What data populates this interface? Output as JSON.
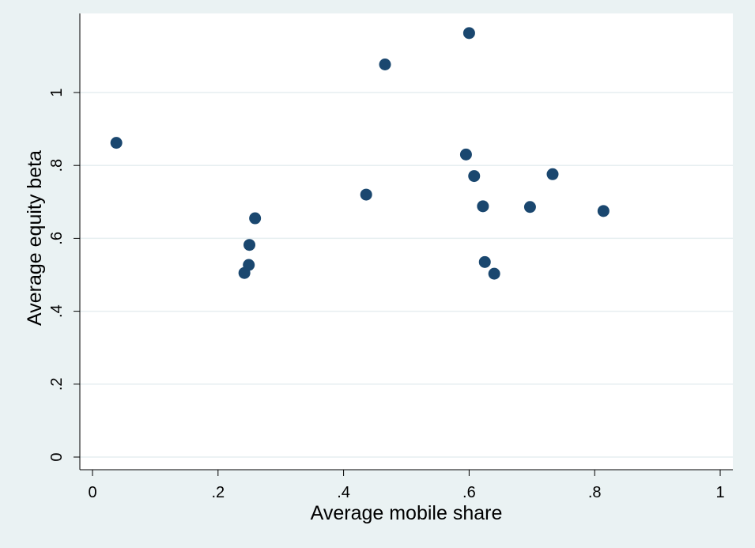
{
  "chart_data": {
    "type": "scatter",
    "title": "",
    "xlabel": "Average mobile share",
    "ylabel": "Average equity beta",
    "xlim": [
      0,
      1
    ],
    "ylim": [
      0,
      1.15
    ],
    "x_ticks": [
      0,
      0.2,
      0.4,
      0.6,
      0.8,
      1
    ],
    "x_tick_labels": [
      "0",
      ".2",
      ".4",
      ".6",
      ".8",
      "1"
    ],
    "y_ticks": [
      0,
      0.2,
      0.4,
      0.6,
      0.8,
      1
    ],
    "y_tick_labels": [
      "0",
      ".2",
      ".4",
      ".6",
      ".8",
      "1"
    ],
    "grid": "horizontal",
    "legend": "none",
    "colors": {
      "page_background": "#eaf2f3",
      "plot_background": "#ffffff",
      "gridline": "#e6eef0",
      "marker": "#1a476f"
    },
    "series": [
      {
        "points": [
          {
            "x": 0.038,
            "y": 0.862
          },
          {
            "x": 0.242,
            "y": 0.505
          },
          {
            "x": 0.249,
            "y": 0.527
          },
          {
            "x": 0.25,
            "y": 0.582
          },
          {
            "x": 0.259,
            "y": 0.655
          },
          {
            "x": 0.436,
            "y": 0.72
          },
          {
            "x": 0.466,
            "y": 1.077
          },
          {
            "x": 0.595,
            "y": 0.83
          },
          {
            "x": 0.6,
            "y": 1.163
          },
          {
            "x": 0.608,
            "y": 0.771
          },
          {
            "x": 0.622,
            "y": 0.688
          },
          {
            "x": 0.625,
            "y": 0.535
          },
          {
            "x": 0.64,
            "y": 0.503
          },
          {
            "x": 0.697,
            "y": 0.686
          },
          {
            "x": 0.733,
            "y": 0.776
          },
          {
            "x": 0.814,
            "y": 0.675
          }
        ]
      }
    ]
  }
}
